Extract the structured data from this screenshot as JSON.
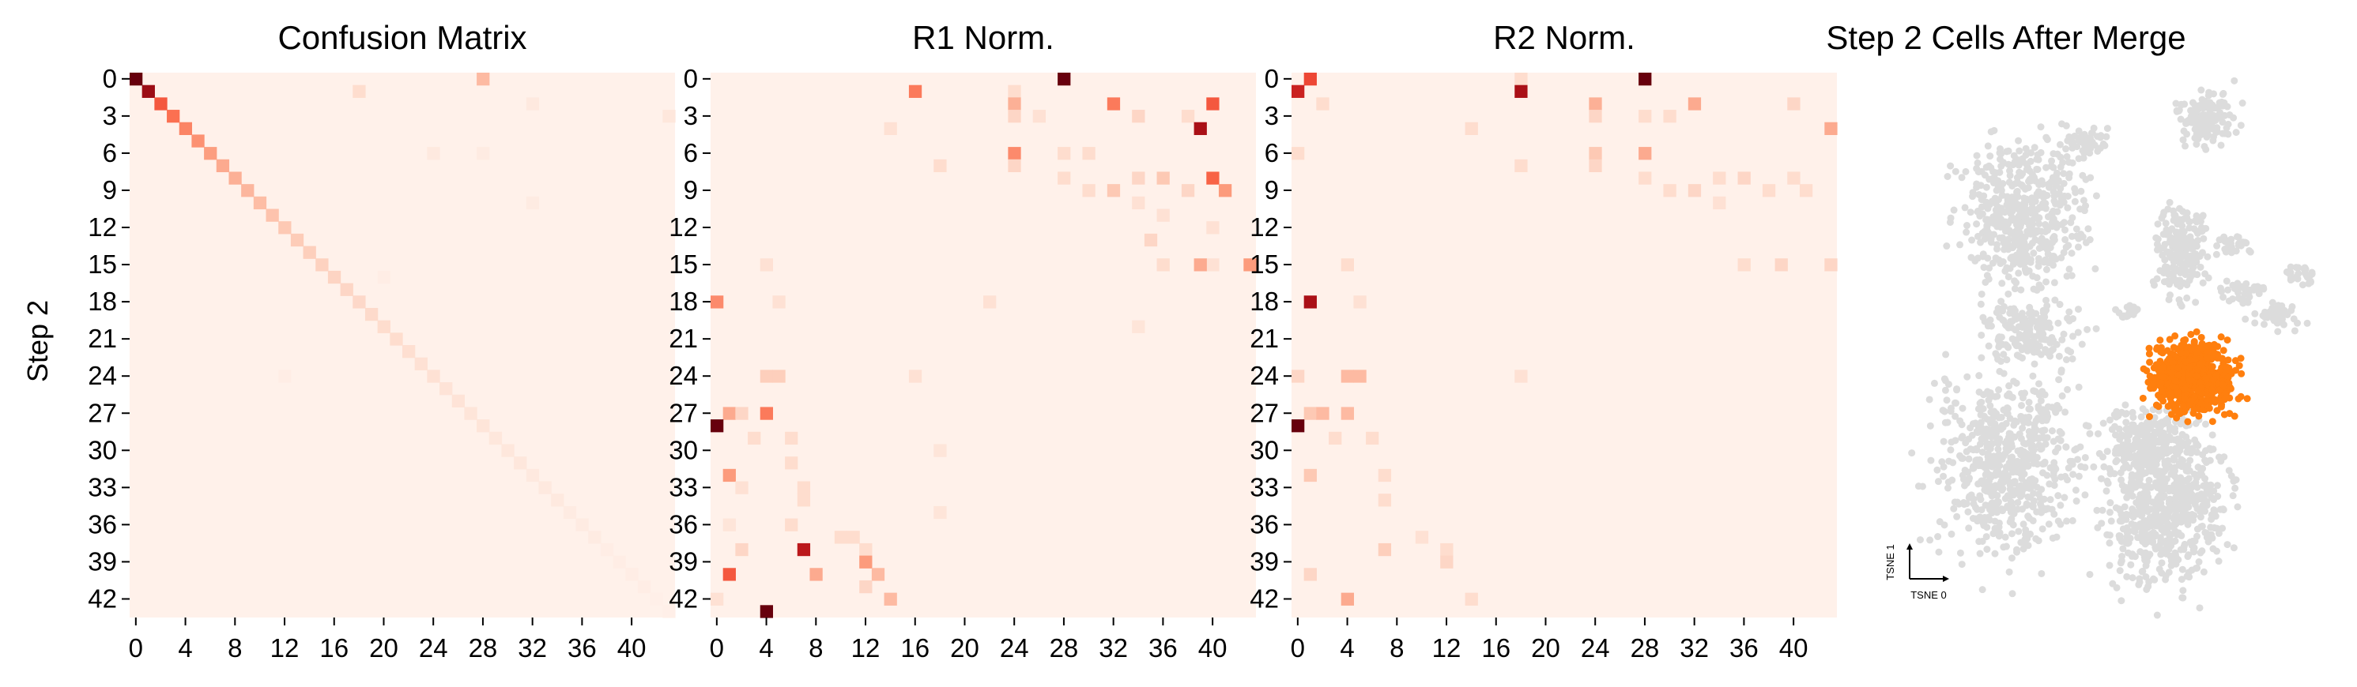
{
  "figure": {
    "ylabel": "Step 2"
  },
  "chart_data": [
    {
      "type": "heatmap",
      "title": "Confusion Matrix",
      "ylabel": "Step 2",
      "xlabel": "",
      "n_rows": 44,
      "n_cols": 44,
      "x_ticks": [
        "0",
        "4",
        "8",
        "12",
        "16",
        "20",
        "24",
        "28",
        "32",
        "36",
        "40"
      ],
      "y_ticks": [
        "0",
        "3",
        "6",
        "9",
        "12",
        "15",
        "18",
        "21",
        "24",
        "27",
        "30",
        "33",
        "36",
        "39",
        "42"
      ],
      "colormap": [
        "#fff5f0",
        "#fdd3c1",
        "#fca082",
        "#fb6a4a",
        "#e32f27",
        "#b11218",
        "#67000d"
      ],
      "baseline": 0.02,
      "diagonal": [
        1.0,
        0.88,
        0.55,
        0.48,
        0.42,
        0.38,
        0.34,
        0.3,
        0.28,
        0.26,
        0.24,
        0.22,
        0.2,
        0.19,
        0.18,
        0.17,
        0.16,
        0.15,
        0.14,
        0.13,
        0.12,
        0.12,
        0.11,
        0.1,
        0.1,
        0.09,
        0.09,
        0.08,
        0.08,
        0.07,
        0.07,
        0.07,
        0.06,
        0.06,
        0.06,
        0.05,
        0.05,
        0.05,
        0.04,
        0.04,
        0.04,
        0.04,
        0.03,
        0.03
      ],
      "cells": [
        [
          0,
          28,
          0.25
        ],
        [
          1,
          18,
          0.12
        ],
        [
          2,
          32,
          0.06
        ],
        [
          3,
          43,
          0.07
        ],
        [
          6,
          24,
          0.06
        ],
        [
          6,
          28,
          0.05
        ],
        [
          10,
          32,
          0.05
        ],
        [
          16,
          20,
          0.04
        ],
        [
          24,
          12,
          0.04
        ]
      ]
    },
    {
      "type": "heatmap",
      "title": "R1 Norm.",
      "ylabel": "",
      "xlabel": "",
      "n_rows": 44,
      "n_cols": 44,
      "x_ticks": [
        "0",
        "4",
        "8",
        "12",
        "16",
        "20",
        "24",
        "28",
        "32",
        "36",
        "40"
      ],
      "y_ticks": [
        "0",
        "3",
        "6",
        "9",
        "12",
        "15",
        "18",
        "21",
        "24",
        "27",
        "30",
        "33",
        "36",
        "39",
        "42"
      ],
      "colormap": [
        "#fff5f0",
        "#fdd3c1",
        "#fca082",
        "#fb6a4a",
        "#e32f27",
        "#b11218",
        "#67000d"
      ],
      "baseline": 0.02,
      "cells": [
        [
          0,
          28,
          1.0
        ],
        [
          1,
          16,
          0.45
        ],
        [
          1,
          24,
          0.12
        ],
        [
          2,
          24,
          0.28
        ],
        [
          2,
          32,
          0.45
        ],
        [
          2,
          40,
          0.55
        ],
        [
          3,
          24,
          0.15
        ],
        [
          3,
          26,
          0.1
        ],
        [
          3,
          34,
          0.15
        ],
        [
          3,
          38,
          0.12
        ],
        [
          4,
          14,
          0.1
        ],
        [
          4,
          39,
          0.85
        ],
        [
          6,
          24,
          0.4
        ],
        [
          6,
          28,
          0.12
        ],
        [
          6,
          30,
          0.12
        ],
        [
          7,
          18,
          0.12
        ],
        [
          7,
          24,
          0.15
        ],
        [
          8,
          28,
          0.12
        ],
        [
          8,
          34,
          0.15
        ],
        [
          8,
          36,
          0.2
        ],
        [
          8,
          40,
          0.52
        ],
        [
          9,
          30,
          0.12
        ],
        [
          9,
          32,
          0.2
        ],
        [
          9,
          38,
          0.15
        ],
        [
          9,
          41,
          0.35
        ],
        [
          10,
          34,
          0.1
        ],
        [
          11,
          36,
          0.1
        ],
        [
          12,
          40,
          0.1
        ],
        [
          13,
          35,
          0.15
        ],
        [
          15,
          40,
          0.1
        ],
        [
          15,
          4,
          0.1
        ],
        [
          15,
          36,
          0.12
        ],
        [
          15,
          39,
          0.3
        ],
        [
          15,
          43,
          0.35
        ],
        [
          18,
          0,
          0.4
        ],
        [
          18,
          5,
          0.1
        ],
        [
          18,
          22,
          0.1
        ],
        [
          20,
          34,
          0.08
        ],
        [
          24,
          4,
          0.18
        ],
        [
          24,
          5,
          0.18
        ],
        [
          24,
          16,
          0.1
        ],
        [
          27,
          1,
          0.3
        ],
        [
          27,
          2,
          0.15
        ],
        [
          27,
          4,
          0.45
        ],
        [
          28,
          0,
          1.0
        ],
        [
          29,
          3,
          0.12
        ],
        [
          29,
          6,
          0.12
        ],
        [
          30,
          18,
          0.08
        ],
        [
          31,
          6,
          0.12
        ],
        [
          32,
          1,
          0.35
        ],
        [
          33,
          2,
          0.1
        ],
        [
          33,
          7,
          0.12
        ],
        [
          34,
          7,
          0.12
        ],
        [
          35,
          18,
          0.08
        ],
        [
          36,
          1,
          0.08
        ],
        [
          36,
          6,
          0.12
        ],
        [
          37,
          10,
          0.12
        ],
        [
          37,
          11,
          0.12
        ],
        [
          38,
          2,
          0.15
        ],
        [
          38,
          7,
          0.8
        ],
        [
          38,
          12,
          0.12
        ],
        [
          39,
          12,
          0.35
        ],
        [
          40,
          1,
          0.55
        ],
        [
          40,
          8,
          0.3
        ],
        [
          40,
          13,
          0.25
        ],
        [
          41,
          12,
          0.15
        ],
        [
          42,
          0,
          0.1
        ],
        [
          42,
          14,
          0.25
        ],
        [
          43,
          4,
          1.0
        ]
      ]
    },
    {
      "type": "heatmap",
      "title": "R2 Norm.",
      "ylabel": "",
      "xlabel": "",
      "n_rows": 44,
      "n_cols": 44,
      "x_ticks": [
        "0",
        "4",
        "8",
        "12",
        "16",
        "20",
        "24",
        "28",
        "32",
        "36",
        "40"
      ],
      "y_ticks": [
        "0",
        "3",
        "6",
        "9",
        "12",
        "15",
        "18",
        "21",
        "24",
        "27",
        "30",
        "33",
        "36",
        "39",
        "42"
      ],
      "colormap": [
        "#fff5f0",
        "#fdd3c1",
        "#fca082",
        "#fb6a4a",
        "#e32f27",
        "#b11218",
        "#67000d"
      ],
      "baseline": 0.02,
      "cells": [
        [
          0,
          1,
          0.6
        ],
        [
          0,
          18,
          0.12
        ],
        [
          0,
          28,
          1.0
        ],
        [
          1,
          0,
          0.75
        ],
        [
          1,
          18,
          0.85
        ],
        [
          2,
          2,
          0.12
        ],
        [
          2,
          24,
          0.28
        ],
        [
          2,
          32,
          0.3
        ],
        [
          2,
          40,
          0.15
        ],
        [
          3,
          24,
          0.15
        ],
        [
          3,
          28,
          0.12
        ],
        [
          3,
          30,
          0.12
        ],
        [
          4,
          14,
          0.12
        ],
        [
          4,
          43,
          0.3
        ],
        [
          6,
          0,
          0.12
        ],
        [
          6,
          24,
          0.2
        ],
        [
          6,
          28,
          0.3
        ],
        [
          7,
          18,
          0.12
        ],
        [
          7,
          24,
          0.15
        ],
        [
          8,
          28,
          0.12
        ],
        [
          8,
          34,
          0.12
        ],
        [
          8,
          36,
          0.15
        ],
        [
          8,
          40,
          0.12
        ],
        [
          9,
          30,
          0.12
        ],
        [
          9,
          32,
          0.15
        ],
        [
          9,
          38,
          0.12
        ],
        [
          9,
          41,
          0.12
        ],
        [
          10,
          34,
          0.1
        ],
        [
          15,
          36,
          0.12
        ],
        [
          15,
          39,
          0.15
        ],
        [
          15,
          4,
          0.12
        ],
        [
          15,
          43,
          0.15
        ],
        [
          18,
          1,
          0.85
        ],
        [
          18,
          5,
          0.1
        ],
        [
          24,
          0,
          0.15
        ],
        [
          24,
          4,
          0.25
        ],
        [
          24,
          5,
          0.25
        ],
        [
          24,
          18,
          0.1
        ],
        [
          27,
          1,
          0.2
        ],
        [
          27,
          2,
          0.25
        ],
        [
          27,
          4,
          0.25
        ],
        [
          28,
          0,
          1.0
        ],
        [
          29,
          3,
          0.12
        ],
        [
          29,
          6,
          0.12
        ],
        [
          32,
          1,
          0.2
        ],
        [
          32,
          7,
          0.12
        ],
        [
          34,
          7,
          0.12
        ],
        [
          37,
          10,
          0.1
        ],
        [
          38,
          7,
          0.18
        ],
        [
          38,
          12,
          0.12
        ],
        [
          39,
          12,
          0.15
        ],
        [
          40,
          1,
          0.15
        ],
        [
          42,
          4,
          0.3
        ],
        [
          42,
          14,
          0.12
        ]
      ]
    },
    {
      "type": "scatter",
      "title": "Step 2 Cells After Merge",
      "xlabel": "TSNE 0",
      "ylabel": "TSNE 1",
      "background_color": "#dcdcdc",
      "highlight_color": "#ff7f0e",
      "grid": false
    }
  ]
}
